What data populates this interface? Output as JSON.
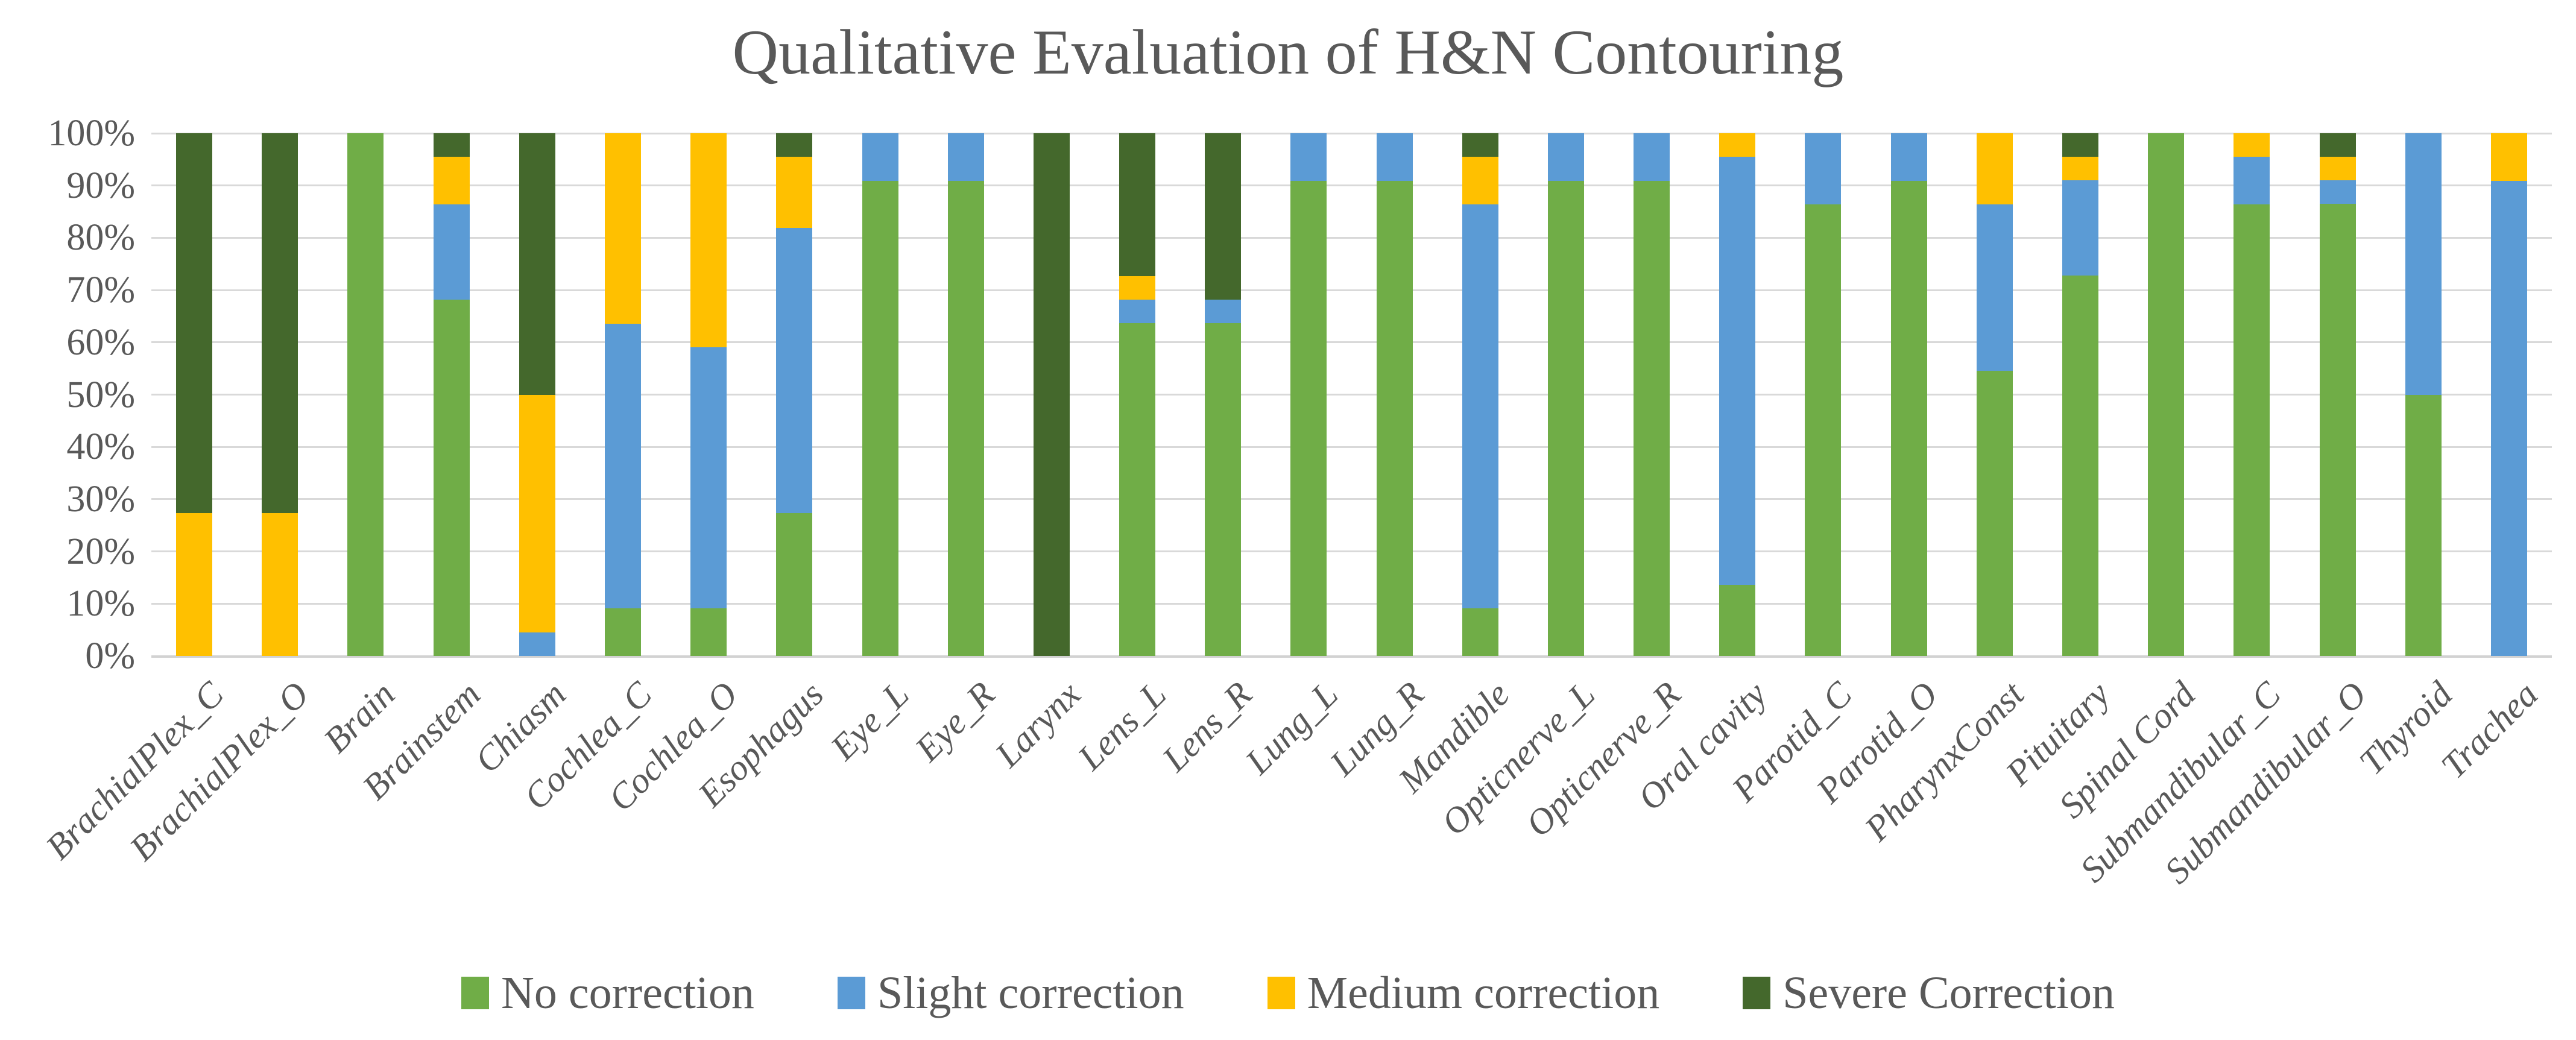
{
  "title": "Qualitative Evaluation of H&N Contouring",
  "colors": {
    "no_correction": "#70AD47",
    "slight_correction": "#5B9BD5",
    "medium_correction": "#FFC000",
    "severe_correction": "#44682C",
    "text_gray": "#595959",
    "gridline": "#D9D9D9"
  },
  "chart_data": {
    "type": "bar",
    "stacked": true,
    "percent_stacked": true,
    "title": "Qualitative Evaluation of H&N Contouring",
    "xlabel": "",
    "ylabel": "",
    "ylim": [
      0,
      100
    ],
    "grid": true,
    "legend_position": "bottom",
    "y_ticks": [
      "0%",
      "10%",
      "20%",
      "30%",
      "40%",
      "50%",
      "60%",
      "70%",
      "80%",
      "90%",
      "100%"
    ],
    "categories": [
      "BrachialPlex_C",
      "BrachialPlex_O",
      "Brain",
      "Brainstem",
      "Chiasm",
      "Cochlea_C",
      "Cochlea_O",
      "Esophagus",
      "Eye_L",
      "Eye_R",
      "Larynx",
      "Lens_L",
      "Lens_R",
      "Lung_L",
      "Lung_R",
      "Mandible",
      "Opticnerve_L",
      "Opticnerve_R",
      "Oral cavity",
      "Parotid_C",
      "Parotid_O",
      "PharynxConst",
      "Pituitary",
      "Spinal Cord",
      "Submandibular_C",
      "Submandibular_O",
      "Thyroid",
      "Trachea"
    ],
    "series": [
      {
        "name": "No correction",
        "color": "#70AD47",
        "values": [
          0,
          0,
          100,
          68.2,
          0,
          9.1,
          9.1,
          27.3,
          90.9,
          90.9,
          0,
          63.6,
          63.6,
          90.9,
          90.9,
          9.1,
          90.9,
          90.9,
          13.6,
          86.4,
          90.9,
          54.5,
          72.7,
          100,
          86.4,
          86.4,
          50,
          0
        ]
      },
      {
        "name": "Slight correction",
        "color": "#5B9BD5",
        "values": [
          0,
          0,
          0,
          18.2,
          4.5,
          54.5,
          50,
          54.5,
          9.1,
          9.1,
          0,
          4.5,
          4.5,
          9.1,
          9.1,
          77.3,
          9.1,
          9.1,
          81.8,
          13.6,
          9.1,
          31.8,
          18.2,
          0,
          9.1,
          4.5,
          50,
          90.9
        ]
      },
      {
        "name": "Medium correction",
        "color": "#FFC000",
        "values": [
          27.3,
          27.3,
          0,
          9.1,
          45.5,
          36.4,
          40.9,
          13.6,
          0,
          0,
          0,
          4.5,
          0,
          0,
          0,
          9.1,
          0,
          0,
          4.5,
          0,
          0,
          13.6,
          4.5,
          0,
          4.5,
          4.5,
          0,
          9.1
        ]
      },
      {
        "name": "Severe Correction",
        "color": "#44682C",
        "values": [
          72.7,
          72.7,
          0,
          4.5,
          50,
          0,
          0,
          4.5,
          0,
          0,
          100,
          27.3,
          31.8,
          0,
          0,
          4.5,
          0,
          0,
          0,
          0,
          0,
          0,
          4.5,
          0,
          0,
          4.5,
          0,
          0
        ]
      }
    ]
  }
}
